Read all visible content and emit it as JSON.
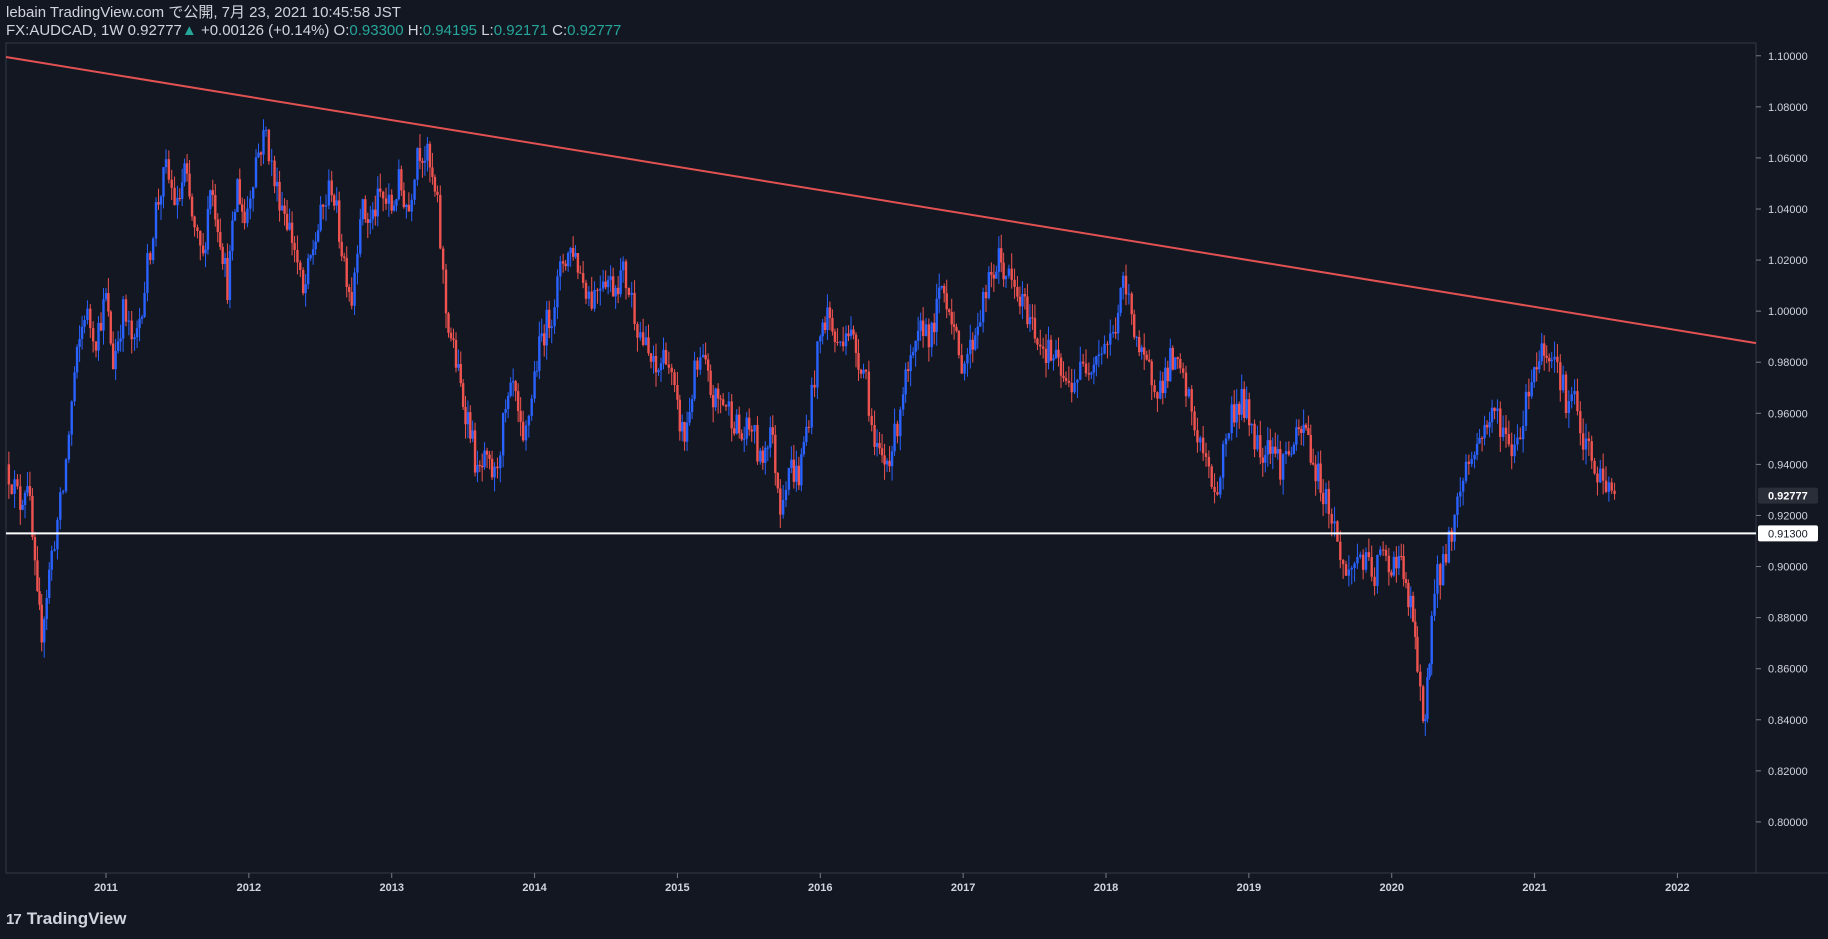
{
  "header": {
    "publish_line": "lebain TradingView.com で公開, 7月 23, 2021 10:45:58 JST",
    "symbol_text": "FX:AUDCAD, 1W 0.92777",
    "change_arrow": "▲",
    "change_text": "+0.00126 (+0.14%)",
    "open_label": "O:",
    "open_value": "0.93300",
    "high_label": "H:",
    "high_value": "0.94195",
    "low_label": "L:",
    "low_value": "0.92171",
    "close_label": "C:",
    "close_value": "0.92777"
  },
  "footer": {
    "logo_mark": "17",
    "logo_text": "TradingView"
  },
  "colors": {
    "background": "#131722",
    "up": "#2962ff",
    "down": "#ef5350",
    "trendline": "#e25252",
    "support": "#ffffff",
    "text": "#d1d4dc",
    "accent": "#26a69a"
  },
  "chart_data": {
    "type": "candlestick",
    "symbol": "FX:AUDCAD",
    "interval": "1W",
    "ylim": [
      0.78,
      1.105
    ],
    "xlim": [
      2010.3,
      2022.55
    ],
    "y_ticks": [
      "1.10000",
      "1.08000",
      "1.06000",
      "1.04000",
      "1.02000",
      "1.00000",
      "0.98000",
      "0.96000",
      "0.94000",
      "0.92000",
      "0.90000",
      "0.88000",
      "0.86000",
      "0.84000",
      "0.82000",
      "0.80000"
    ],
    "x_ticks": [
      "2011",
      "2012",
      "2013",
      "2014",
      "2015",
      "2016",
      "2017",
      "2018",
      "2019",
      "2020",
      "2021",
      "2022"
    ],
    "price_labels": [
      {
        "value": 0.92777,
        "text": "0.92777",
        "style": "last"
      },
      {
        "value": 0.913,
        "text": "0.91300",
        "style": "level"
      }
    ],
    "trendline": {
      "x": [
        2010.3,
        2022.55
      ],
      "y": [
        1.0995,
        0.9875
      ]
    },
    "support_level": 0.913,
    "path": [
      [
        2010.3,
        0.94
      ],
      [
        2010.4,
        0.925
      ],
      [
        2010.45,
        0.935
      ],
      [
        2010.52,
        0.885
      ],
      [
        2010.55,
        0.875
      ],
      [
        2010.62,
        0.905
      ],
      [
        2010.7,
        0.93
      ],
      [
        2010.78,
        0.975
      ],
      [
        2010.85,
        1.0
      ],
      [
        2010.93,
        0.99
      ],
      [
        2011.0,
        1.005
      ],
      [
        2011.05,
        0.98
      ],
      [
        2011.12,
        1.0
      ],
      [
        2011.2,
        0.985
      ],
      [
        2011.27,
        1.01
      ],
      [
        2011.35,
        1.04
      ],
      [
        2011.42,
        1.055
      ],
      [
        2011.5,
        1.04
      ],
      [
        2011.55,
        1.055
      ],
      [
        2011.62,
        1.03
      ],
      [
        2011.68,
        1.02
      ],
      [
        2011.73,
        1.05
      ],
      [
        2011.8,
        1.03
      ],
      [
        2011.85,
        1.01
      ],
      [
        2011.92,
        1.05
      ],
      [
        2011.97,
        1.035
      ],
      [
        2012.05,
        1.06
      ],
      [
        2012.12,
        1.07
      ],
      [
        2012.18,
        1.05
      ],
      [
        2012.25,
        1.04
      ],
      [
        2012.32,
        1.025
      ],
      [
        2012.38,
        1.005
      ],
      [
        2012.45,
        1.025
      ],
      [
        2012.52,
        1.04
      ],
      [
        2012.58,
        1.05
      ],
      [
        2012.65,
        1.025
      ],
      [
        2012.72,
        1.005
      ],
      [
        2012.78,
        1.04
      ],
      [
        2012.85,
        1.035
      ],
      [
        2012.92,
        1.045
      ],
      [
        2013.0,
        1.04
      ],
      [
        2013.05,
        1.05
      ],
      [
        2013.12,
        1.04
      ],
      [
        2013.18,
        1.065
      ],
      [
        2013.25,
        1.06
      ],
      [
        2013.32,
        1.04
      ],
      [
        2013.38,
        1.0
      ],
      [
        2013.45,
        0.98
      ],
      [
        2013.5,
        0.965
      ],
      [
        2013.55,
        0.955
      ],
      [
        2013.6,
        0.935
      ],
      [
        2013.65,
        0.94
      ],
      [
        2013.72,
        0.935
      ],
      [
        2013.78,
        0.955
      ],
      [
        2013.85,
        0.97
      ],
      [
        2013.92,
        0.945
      ],
      [
        2014.0,
        0.975
      ],
      [
        2014.05,
        0.99
      ],
      [
        2014.12,
        1.0
      ],
      [
        2014.2,
        1.02
      ],
      [
        2014.27,
        1.025
      ],
      [
        2014.32,
        1.015
      ],
      [
        2014.4,
        1.005
      ],
      [
        2014.48,
        1.015
      ],
      [
        2014.55,
        1.01
      ],
      [
        2014.62,
        1.015
      ],
      [
        2014.68,
        1.005
      ],
      [
        2014.72,
        0.995
      ],
      [
        2014.78,
        0.985
      ],
      [
        2014.85,
        0.975
      ],
      [
        2014.92,
        0.985
      ],
      [
        2015.0,
        0.96
      ],
      [
        2015.05,
        0.95
      ],
      [
        2015.12,
        0.975
      ],
      [
        2015.18,
        0.98
      ],
      [
        2015.25,
        0.965
      ],
      [
        2015.32,
        0.965
      ],
      [
        2015.38,
        0.96
      ],
      [
        2015.45,
        0.95
      ],
      [
        2015.52,
        0.955
      ],
      [
        2015.58,
        0.94
      ],
      [
        2015.65,
        0.955
      ],
      [
        2015.72,
        0.925
      ],
      [
        2015.78,
        0.94
      ],
      [
        2015.85,
        0.935
      ],
      [
        2015.92,
        0.96
      ],
      [
        2016.0,
        0.99
      ],
      [
        2016.05,
        1.0
      ],
      [
        2016.12,
        0.985
      ],
      [
        2016.18,
        0.995
      ],
      [
        2016.25,
        0.985
      ],
      [
        2016.32,
        0.975
      ],
      [
        2016.38,
        0.945
      ],
      [
        2016.45,
        0.94
      ],
      [
        2016.52,
        0.95
      ],
      [
        2016.58,
        0.97
      ],
      [
        2016.65,
        0.98
      ],
      [
        2016.72,
        0.995
      ],
      [
        2016.78,
        0.99
      ],
      [
        2016.85,
        1.01
      ],
      [
        2016.92,
        1.0
      ],
      [
        2016.97,
        0.98
      ],
      [
        2017.05,
        0.985
      ],
      [
        2017.12,
        1.0
      ],
      [
        2017.18,
        1.01
      ],
      [
        2017.25,
        1.02
      ],
      [
        2017.3,
        1.015
      ],
      [
        2017.38,
        1.005
      ],
      [
        2017.45,
        1.0
      ],
      [
        2017.52,
        0.99
      ],
      [
        2017.58,
        0.985
      ],
      [
        2017.65,
        0.98
      ],
      [
        2017.72,
        0.97
      ],
      [
        2017.8,
        0.975
      ],
      [
        2017.88,
        0.98
      ],
      [
        2017.95,
        0.985
      ],
      [
        2018.05,
        0.99
      ],
      [
        2018.12,
        1.01
      ],
      [
        2018.18,
        1.0
      ],
      [
        2018.25,
        0.98
      ],
      [
        2018.32,
        0.975
      ],
      [
        2018.38,
        0.97
      ],
      [
        2018.45,
        0.98
      ],
      [
        2018.52,
        0.975
      ],
      [
        2018.58,
        0.965
      ],
      [
        2018.62,
        0.955
      ],
      [
        2018.68,
        0.945
      ],
      [
        2018.72,
        0.935
      ],
      [
        2018.78,
        0.93
      ],
      [
        2018.82,
        0.945
      ],
      [
        2018.88,
        0.96
      ],
      [
        2018.95,
        0.965
      ],
      [
        2019.02,
        0.955
      ],
      [
        2019.08,
        0.945
      ],
      [
        2019.15,
        0.95
      ],
      [
        2019.22,
        0.94
      ],
      [
        2019.28,
        0.945
      ],
      [
        2019.35,
        0.95
      ],
      [
        2019.4,
        0.955
      ],
      [
        2019.45,
        0.94
      ],
      [
        2019.52,
        0.93
      ],
      [
        2019.58,
        0.92
      ],
      [
        2019.62,
        0.91
      ],
      [
        2019.68,
        0.895
      ],
      [
        2019.72,
        0.9
      ],
      [
        2019.78,
        0.905
      ],
      [
        2019.82,
        0.9
      ],
      [
        2019.88,
        0.895
      ],
      [
        2019.92,
        0.905
      ],
      [
        2019.98,
        0.9
      ],
      [
        2020.05,
        0.905
      ],
      [
        2020.1,
        0.89
      ],
      [
        2020.15,
        0.88
      ],
      [
        2020.18,
        0.86
      ],
      [
        2020.22,
        0.835
      ],
      [
        2020.25,
        0.855
      ],
      [
        2020.28,
        0.88
      ],
      [
        2020.32,
        0.895
      ],
      [
        2020.38,
        0.905
      ],
      [
        2020.42,
        0.915
      ],
      [
        2020.48,
        0.93
      ],
      [
        2020.52,
        0.94
      ],
      [
        2020.58,
        0.945
      ],
      [
        2020.65,
        0.955
      ],
      [
        2020.72,
        0.96
      ],
      [
        2020.78,
        0.955
      ],
      [
        2020.82,
        0.945
      ],
      [
        2020.88,
        0.95
      ],
      [
        2020.92,
        0.96
      ],
      [
        2020.98,
        0.975
      ],
      [
        2021.05,
        0.985
      ],
      [
        2021.12,
        0.985
      ],
      [
        2021.18,
        0.975
      ],
      [
        2021.22,
        0.965
      ],
      [
        2021.28,
        0.965
      ],
      [
        2021.32,
        0.95
      ],
      [
        2021.38,
        0.945
      ],
      [
        2021.42,
        0.935
      ],
      [
        2021.48,
        0.935
      ],
      [
        2021.52,
        0.93
      ],
      [
        2021.56,
        0.928
      ]
    ]
  }
}
